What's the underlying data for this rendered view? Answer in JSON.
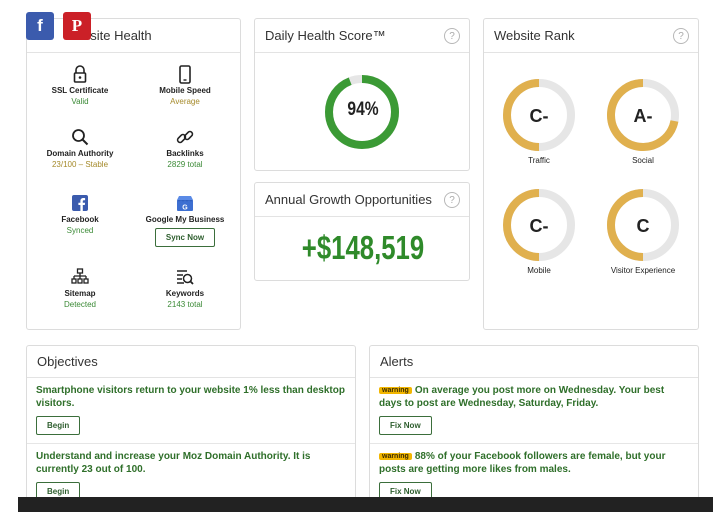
{
  "social": {
    "facebook_glyph": "f",
    "pinterest_glyph": "P"
  },
  "health": {
    "title_tail": "bsite Health",
    "items": [
      {
        "label": "SSL Certificate",
        "value": "Valid",
        "icon": "lock-icon"
      },
      {
        "label": "Mobile Speed",
        "value": "Average",
        "icon": "phone-icon"
      },
      {
        "label": "Domain Authority",
        "value": "23/100 – Stable",
        "icon": "search-icon"
      },
      {
        "label": "Backlinks",
        "value": "2829 total",
        "icon": "link-icon"
      },
      {
        "label": "Facebook",
        "value": "Synced",
        "icon": "facebook-icon"
      },
      {
        "label": "Google My Business",
        "value": "Sync Now",
        "icon": "store-icon"
      },
      {
        "label": "Sitemap",
        "value": "Detected",
        "icon": "sitemap-icon"
      },
      {
        "label": "Keywords",
        "value": "2143 total",
        "icon": "keywords-icon"
      }
    ]
  },
  "daily": {
    "title": "Daily Health Score™",
    "score": "94%",
    "score_fraction": 0.94
  },
  "growth": {
    "title": "Annual Growth Opportunities",
    "value": "+$148,519"
  },
  "rank": {
    "title": "Website Rank",
    "items": [
      {
        "grade": "C-",
        "label": "Traffic"
      },
      {
        "grade": "A-",
        "label": "Social"
      },
      {
        "grade": "C-",
        "label": "Mobile"
      },
      {
        "grade": "C",
        "label": "Visitor Experience"
      }
    ]
  },
  "help_glyph": "?",
  "objectives": {
    "title": "Objectives",
    "items": [
      {
        "text": "Smartphone visitors return to your website 1% less than desktop visitors.",
        "button": "Begin"
      },
      {
        "text": "Understand and increase your Moz Domain Authority. It is currently 23 out of 100.",
        "button": "Begin"
      }
    ]
  },
  "alerts": {
    "title": "Alerts",
    "items": [
      {
        "badge": "warning",
        "text": "On average you post more on Wednesday. Your best days to post are Wednesday, Saturday, Friday.",
        "button": "Fix Now"
      },
      {
        "badge": "warning",
        "text": "88% of your Facebook followers are female, but your posts are getting more likes from males.",
        "button": "Fix Now"
      }
    ]
  },
  "colors": {
    "green": "#3b9a35",
    "gold": "#e0b04e",
    "ring_track": "#e6e6e6",
    "facebook": "#3b5bad",
    "pinterest": "#cb2027"
  }
}
